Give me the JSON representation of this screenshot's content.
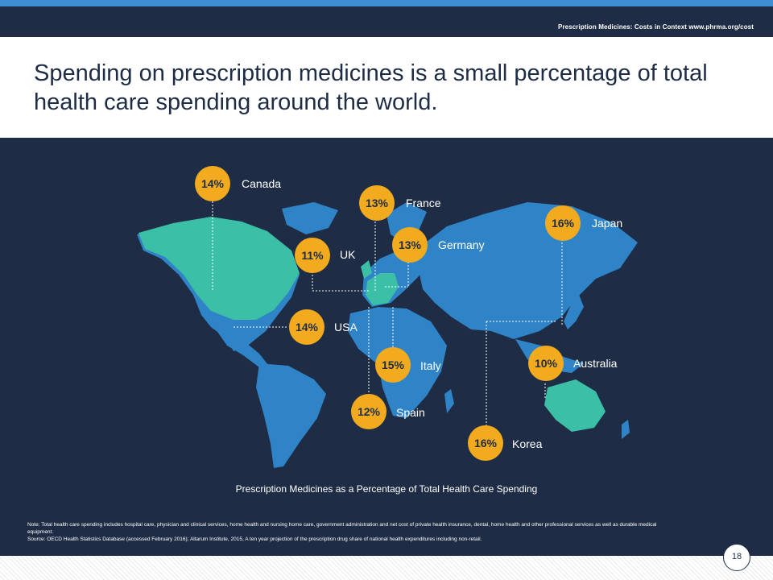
{
  "header": {
    "caption": "Prescription  Medicines:  Costs  in Context  www.phrma.org/cost"
  },
  "title": "Spending on prescription medicines is a small percentage of total health care spending around the world.",
  "map": {
    "caption": "Prescription Medicines as a Percentage of Total Health Care Spending",
    "colors": {
      "background": "#1e2d45",
      "land": "#2f84c8",
      "highlighted": "#3bbfa6",
      "bubble": "#f2aa1e"
    },
    "countries": [
      {
        "name": "Canada",
        "value": "14%"
      },
      {
        "name": "France",
        "value": "13%"
      },
      {
        "name": "Japan",
        "value": "16%"
      },
      {
        "name": "UK",
        "value": "11%"
      },
      {
        "name": "Germany",
        "value": "13%"
      },
      {
        "name": "USA",
        "value": "14%"
      },
      {
        "name": "Italy",
        "value": "15%"
      },
      {
        "name": "Australia",
        "value": "10%"
      },
      {
        "name": "Spain",
        "value": "12%"
      },
      {
        "name": "Korea",
        "value": "16%"
      }
    ]
  },
  "notes": {
    "line1": "Note: Total health care spending  includes  hospital  care, physician  and  clinical services, home health  and  nursing home care, government  administration  and  net cost of private health  insurance,  dental,  home health  and  other professional  services as well as durable  medical equipment.",
    "line2": "Source: OECD Health Statistics Database  (accessed February  2016);  Altarum Institute,  2015,  A ten year projection  of the prescription  drug share of national  health expenditures  including  non-retail."
  },
  "page_number": "18"
}
